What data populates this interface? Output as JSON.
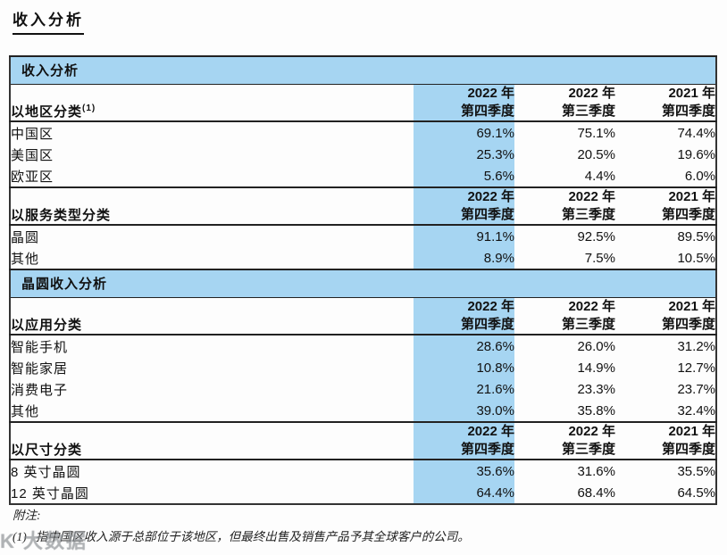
{
  "page_title": "收入分析",
  "watermark": {
    "text": "K 大数据"
  },
  "table": {
    "section1_header": "收入分析",
    "section2_header": "晶圆收入分析",
    "col_headers": {
      "c1_line1": "2022 年",
      "c1_line2": "第四季度",
      "c2_line1": "2022 年",
      "c2_line2": "第三季度",
      "c3_line1": "2021 年",
      "c3_line2": "第四季度"
    },
    "groups": [
      {
        "label": "以地区分类",
        "sup": "(1)",
        "rows": [
          {
            "label": "中国区",
            "v1": "69.1%",
            "v2": "75.1%",
            "v3": "74.4%"
          },
          {
            "label": "美国区",
            "v1": "25.3%",
            "v2": "20.5%",
            "v3": "19.6%"
          },
          {
            "label": "欧亚区",
            "v1": "5.6%",
            "v2": "4.4%",
            "v3": "6.0%"
          }
        ]
      },
      {
        "label": "以服务类型分类",
        "sup": "",
        "rows": [
          {
            "label": "晶圆",
            "v1": "91.1%",
            "v2": "92.5%",
            "v3": "89.5%"
          },
          {
            "label": "其他",
            "v1": "8.9%",
            "v2": "7.5%",
            "v3": "10.5%"
          }
        ]
      },
      {
        "label": "以应用分类",
        "sup": "",
        "rows": [
          {
            "label": "智能手机",
            "v1": "28.6%",
            "v2": "26.0%",
            "v3": "31.2%"
          },
          {
            "label": "智能家居",
            "v1": "10.8%",
            "v2": "14.9%",
            "v3": "12.7%"
          },
          {
            "label": "消费电子",
            "v1": "21.6%",
            "v2": "23.3%",
            "v3": "23.7%"
          },
          {
            "label": "其他",
            "v1": "39.0%",
            "v2": "35.8%",
            "v3": "32.4%"
          }
        ]
      },
      {
        "label": "以尺寸分类",
        "sup": "",
        "rows": [
          {
            "label": "8 英寸晶圆",
            "v1": "35.6%",
            "v2": "31.6%",
            "v3": "35.5%"
          },
          {
            "label": "12 英寸晶圆",
            "v1": "64.4%",
            "v2": "68.4%",
            "v3": "64.5%"
          }
        ]
      }
    ]
  },
  "footnote": {
    "label": "附注:",
    "marker": "(1)",
    "text": "指中国区收入源于总部位于该地区，但最终出售及销售产品予其全球客户的公司。"
  },
  "colors": {
    "highlight_blue": "#a6d5f2",
    "border_dark": "#222222"
  }
}
